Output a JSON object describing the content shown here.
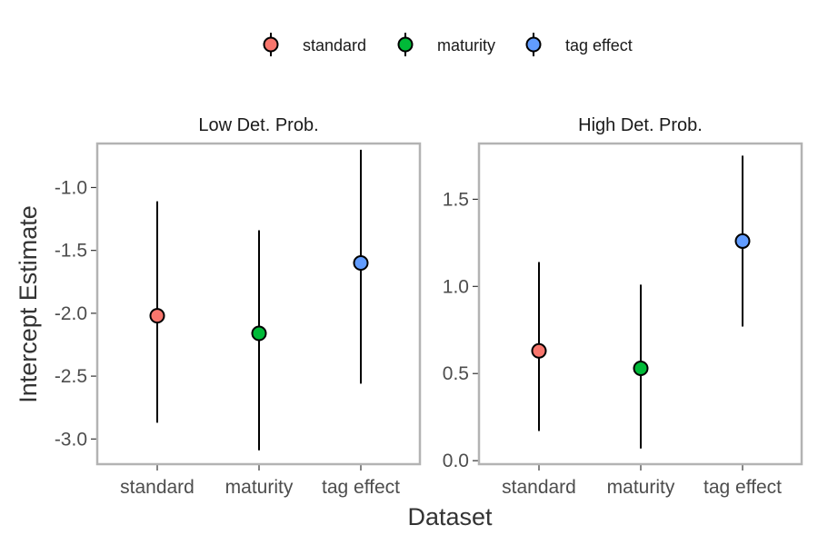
{
  "chart_data": {
    "type": "scatter",
    "subtype": "point-range",
    "xlabel": "Dataset",
    "ylabel": "Intercept Estimate",
    "categories": [
      "standard",
      "maturity",
      "tag effect"
    ],
    "legend": {
      "placement": "top",
      "entries": [
        {
          "name": "standard",
          "color": "#F8766D"
        },
        {
          "name": "maturity",
          "color": "#00BA38"
        },
        {
          "name": "tag effect",
          "color": "#619CFF"
        }
      ]
    },
    "facets": [
      {
        "title": "Low Det. Prob.",
        "ylim": [
          -3.2,
          -0.65
        ],
        "yticks": [
          -3.0,
          -2.5,
          -2.0,
          -1.5,
          -1.0
        ],
        "yticklabels": [
          "-3.0",
          "-2.5",
          "-2.0",
          "-1.5",
          "-1.0"
        ],
        "points": [
          {
            "category": "standard",
            "estimate": -2.02,
            "lower": -2.87,
            "upper": -1.11
          },
          {
            "category": "maturity",
            "estimate": -2.16,
            "lower": -3.09,
            "upper": -1.34
          },
          {
            "category": "tag effect",
            "estimate": -1.6,
            "lower": -2.56,
            "upper": -0.7
          }
        ]
      },
      {
        "title": "High Det. Prob.",
        "ylim": [
          -0.02,
          1.82
        ],
        "yticks": [
          0.0,
          0.5,
          1.0,
          1.5
        ],
        "yticklabels": [
          "0.0",
          "0.5",
          "1.0",
          "1.5"
        ],
        "points": [
          {
            "category": "standard",
            "estimate": 0.63,
            "lower": 0.17,
            "upper": 1.14
          },
          {
            "category": "maturity",
            "estimate": 0.53,
            "lower": 0.07,
            "upper": 1.01
          },
          {
            "category": "tag effect",
            "estimate": 1.26,
            "lower": 0.77,
            "upper": 1.75
          }
        ]
      }
    ],
    "grid": false
  }
}
